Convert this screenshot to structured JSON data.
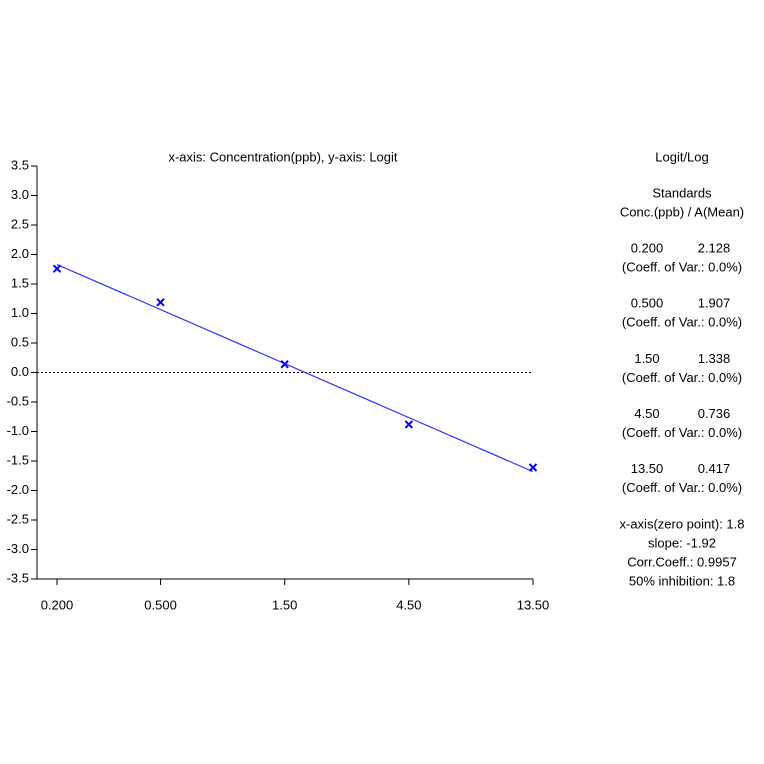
{
  "chart_data": {
    "type": "scatter",
    "title": "x-axis: Concentration(ppb), y-axis: Logit",
    "xscale": "log",
    "xlim": [
      0.2,
      13.5
    ],
    "ylim": [
      -3.5,
      3.5
    ],
    "xticks": [
      {
        "value": 0.2,
        "label": "0.200"
      },
      {
        "value": 0.5,
        "label": "0.500"
      },
      {
        "value": 1.5,
        "label": "1.50"
      },
      {
        "value": 4.5,
        "label": "4.50"
      },
      {
        "value": 13.5,
        "label": "13.50"
      }
    ],
    "yticks": [
      3.5,
      {
        "value": 3,
        "label": "3.0"
      },
      2.5,
      {
        "value": 2,
        "label": "2.0"
      },
      1.5,
      {
        "value": 1,
        "label": "1.0"
      },
      0.5,
      {
        "value": 0,
        "label": "0.0"
      },
      -0.5,
      {
        "value": -1,
        "label": "-1.0"
      },
      -1.5,
      {
        "value": -2,
        "label": "-2.0"
      },
      -2.5,
      {
        "value": -3,
        "label": "-3.0"
      },
      -3.5
    ],
    "series": [
      {
        "color": "#0000ff",
        "x": [
          0.2,
          0.5,
          1.5,
          4.5,
          13.5
        ],
        "values": [
          1.76,
          1.19,
          0.14,
          -0.88,
          -1.61
        ]
      }
    ],
    "fit_line": {
      "color": "#3333ff",
      "x": [
        0.2,
        13.5
      ],
      "values": [
        1.83,
        -1.68
      ]
    },
    "reference_line": {
      "y": 0,
      "dashed": true
    },
    "side_panel": {
      "title": "Logit/Log",
      "subtitle": "Standards",
      "header": "Conc.(ppb) / A(Mean)",
      "rows": [
        {
          "conc": "0.200",
          "mean": "2.128",
          "cv": "(Coeff. of Var.: 0.0%)"
        },
        {
          "conc": "0.500",
          "mean": "1.907",
          "cv": "(Coeff. of Var.: 0.0%)"
        },
        {
          "conc": "1.50",
          "mean": "1.338",
          "cv": "(Coeff. of Var.: 0.0%)"
        },
        {
          "conc": "4.50",
          "mean": "0.736",
          "cv": "(Coeff. of Var.: 0.0%)"
        },
        {
          "conc": "13.50",
          "mean": "0.417",
          "cv": "(Coeff. of Var.: 0.0%)"
        }
      ],
      "stats": [
        "x-axis(zero point): 1.8",
        "slope: -1.92",
        "Corr.Coeff.: 0.9957",
        "50% inhibition: 1.8"
      ]
    }
  }
}
